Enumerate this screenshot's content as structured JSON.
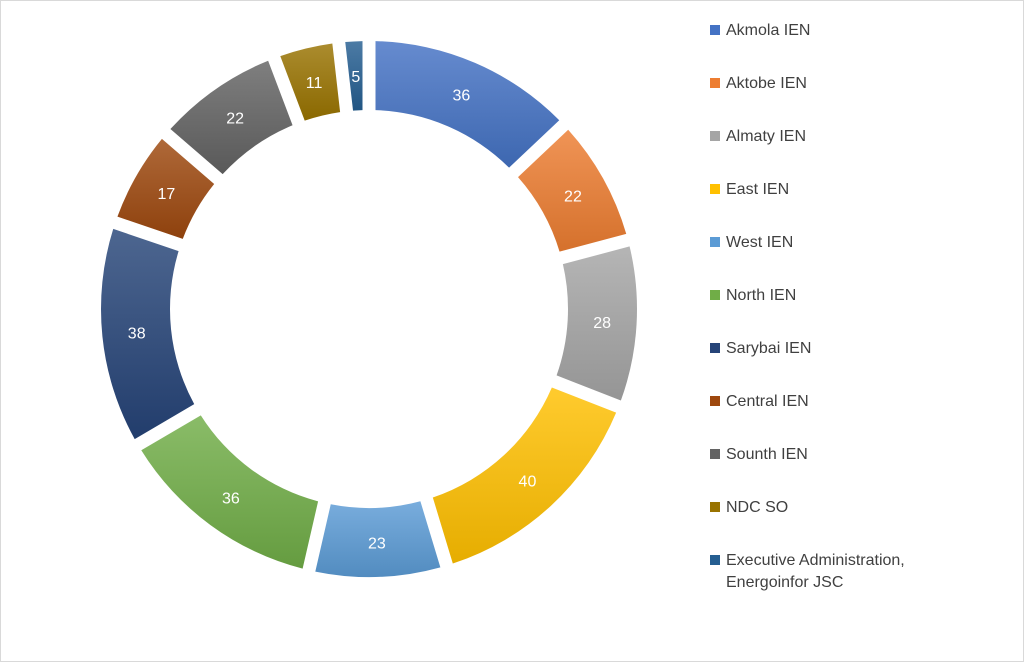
{
  "chart_data": {
    "type": "pie",
    "variant": "doughnut",
    "title": "",
    "legend_position": "right",
    "categories": [
      "Akmola IEN",
      "Aktobe IEN",
      "Almaty IEN",
      "East IEN",
      "West IEN",
      "North IEN",
      "Sarybai IEN",
      "Central IEN",
      "Sounth IEN",
      "NDC SO",
      "Executive Administration, Energoinfor JSC"
    ],
    "values": [
      36,
      22,
      28,
      40,
      23,
      36,
      38,
      17,
      22,
      11,
      5
    ],
    "colors": [
      "#4472c4",
      "#ed7d31",
      "#a5a5a5",
      "#ffc000",
      "#5b9bd5",
      "#70ad47",
      "#264478",
      "#9e480e",
      "#636363",
      "#997300",
      "#255e91"
    ],
    "data_labels": [
      "36",
      "22",
      "28",
      "40",
      "23",
      "36",
      "38",
      "17",
      "22",
      "11",
      "5"
    ]
  }
}
